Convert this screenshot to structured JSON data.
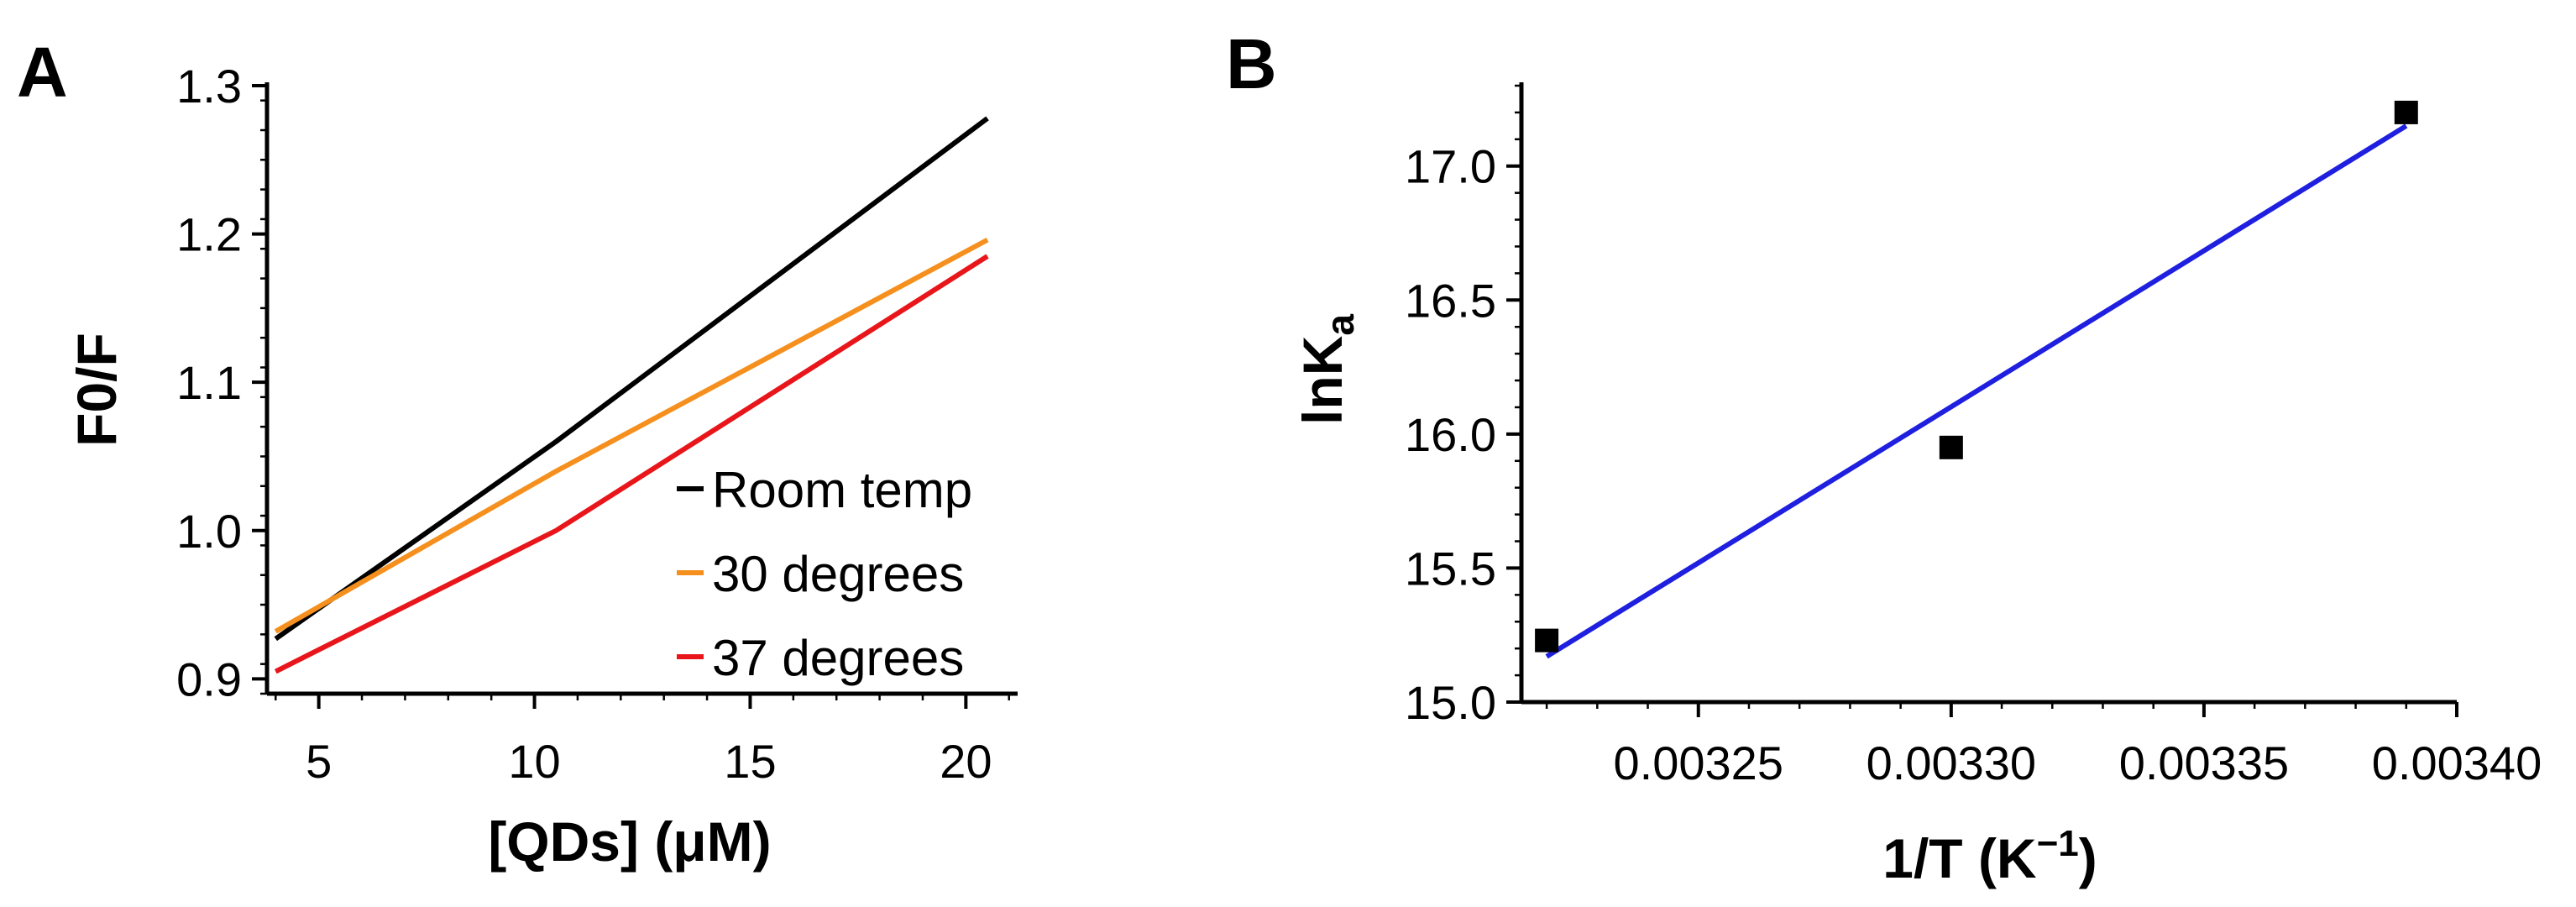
{
  "chart_data": [
    {
      "panel": "A",
      "type": "line",
      "xlabel": "[QDs] (μM)",
      "ylabel": "F0/F",
      "xlim": [
        3.8,
        21.2
      ],
      "ylim": [
        0.89,
        1.3
      ],
      "x_ticks": [
        5,
        10,
        15,
        20
      ],
      "x_tick_labels": [
        "5",
        "10",
        "15",
        "20"
      ],
      "y_ticks": [
        0.9,
        1.0,
        1.1,
        1.2,
        1.3
      ],
      "y_tick_labels": [
        "0.9",
        "1.0",
        "1.1",
        "1.2",
        "1.3"
      ],
      "legend_position": "bottom-right",
      "grid": false,
      "series": [
        {
          "name": "Room temp",
          "color": "#000000",
          "x": [
            4,
            10.5,
            20.5
          ],
          "y": [
            0.927,
            1.06,
            1.278
          ]
        },
        {
          "name": "30 degrees",
          "color": "#f5901e",
          "x": [
            4,
            10.5,
            20.5
          ],
          "y": [
            0.932,
            1.04,
            1.196
          ]
        },
        {
          "name": "37 degrees",
          "color": "#e8161b",
          "x": [
            4,
            10.5,
            20.5
          ],
          "y": [
            0.905,
            1.0,
            1.185
          ]
        }
      ]
    },
    {
      "panel": "B",
      "type": "scatter",
      "xlabel": "1/T (K",
      "xlabel_sup": "−1",
      "xlabel_close": ")",
      "ylabel": "lnK",
      "ylabel_sub": "a",
      "xlim": [
        0.003215,
        0.0034
      ],
      "ylim": [
        15.0,
        17.3
      ],
      "x_ticks": [
        0.00325,
        0.0033,
        0.00335,
        0.0034
      ],
      "x_tick_labels": [
        "0.00325",
        "0.00330",
        "0.00335",
        "0.00340"
      ],
      "y_ticks": [
        15.0,
        15.5,
        16.0,
        16.5,
        17.0
      ],
      "y_tick_labels": [
        "15.0",
        "15.5",
        "16.0",
        "16.5",
        "17.0"
      ],
      "grid": false,
      "points": {
        "color": "#000000",
        "x": [
          0.00322,
          0.0033,
          0.00339
        ],
        "y": [
          15.23,
          15.95,
          17.2
        ]
      },
      "fit_line": {
        "color": "#1f1fe0",
        "x": [
          0.00322,
          0.00339
        ],
        "y": [
          15.17,
          17.15
        ]
      }
    }
  ],
  "panels": {
    "a_label": "A",
    "b_label": "B"
  }
}
